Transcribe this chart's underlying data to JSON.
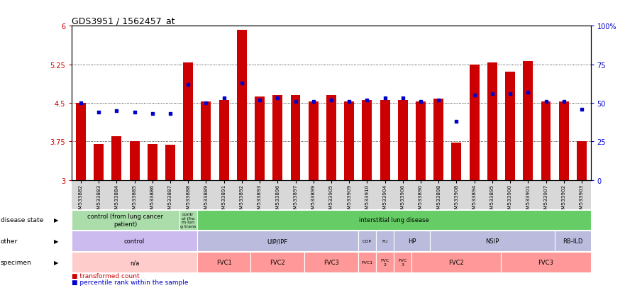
{
  "title": "GDS3951 / 1562457_at",
  "samples": [
    "GSM533882",
    "GSM533883",
    "GSM533884",
    "GSM533885",
    "GSM533886",
    "GSM533887",
    "GSM533888",
    "GSM533889",
    "GSM533891",
    "GSM533892",
    "GSM533893",
    "GSM533896",
    "GSM533897",
    "GSM533899",
    "GSM533905",
    "GSM533909",
    "GSM533910",
    "GSM533904",
    "GSM533906",
    "GSM533890",
    "GSM533898",
    "GSM533908",
    "GSM533894",
    "GSM533895",
    "GSM533900",
    "GSM533901",
    "GSM533907",
    "GSM533902",
    "GSM533903"
  ],
  "bar_values": [
    4.5,
    3.7,
    3.85,
    3.75,
    3.7,
    3.68,
    5.28,
    4.52,
    4.55,
    5.92,
    4.63,
    4.65,
    4.65,
    4.52,
    4.65,
    4.53,
    4.55,
    4.55,
    4.55,
    4.52,
    4.58,
    3.73,
    5.25,
    5.28,
    5.1,
    5.32,
    4.52,
    4.52,
    3.75
  ],
  "percentile_values": [
    50,
    44,
    45,
    44,
    43,
    43,
    62,
    50,
    53,
    63,
    52,
    53,
    51,
    51,
    52,
    51,
    52,
    53,
    53,
    51,
    52,
    38,
    55,
    56,
    56,
    57,
    51,
    51,
    46
  ],
  "ylim_left": [
    3,
    6
  ],
  "ylim_right": [
    0,
    100
  ],
  "yticks_left": [
    3,
    3.75,
    4.5,
    5.25,
    6
  ],
  "yticks_right": [
    0,
    25,
    50,
    75,
    100
  ],
  "bar_color": "#cc0000",
  "point_color": "#0000cc",
  "ds_groups": [
    {
      "label": "control (from lung cancer\npatient)",
      "start": 0,
      "end": 6,
      "color": "#aaddaa"
    },
    {
      "label": "contr\nol (fro\nm lun\ng trans",
      "start": 6,
      "end": 7,
      "color": "#aaddaa"
    },
    {
      "label": "interstitial lung disease",
      "start": 7,
      "end": 29,
      "color": "#66cc66"
    }
  ],
  "other_groups": [
    {
      "label": "control",
      "start": 0,
      "end": 7,
      "color": "#ccbbee"
    },
    {
      "label": "UIP/IPF",
      "start": 7,
      "end": 16,
      "color": "#bbbbdd"
    },
    {
      "label": "COP",
      "start": 16,
      "end": 17,
      "color": "#bbbbdd"
    },
    {
      "label": "FU",
      "start": 17,
      "end": 18,
      "color": "#bbbbdd"
    },
    {
      "label": "HP",
      "start": 18,
      "end": 20,
      "color": "#bbbbdd"
    },
    {
      "label": "NSIP",
      "start": 20,
      "end": 27,
      "color": "#bbbbdd"
    },
    {
      "label": "RB-ILD",
      "start": 27,
      "end": 29,
      "color": "#bbbbdd"
    }
  ],
  "specimen_groups": [
    {
      "label": "n/a",
      "start": 0,
      "end": 7,
      "color": "#ffcccc"
    },
    {
      "label": "FVC1",
      "start": 7,
      "end": 10,
      "color": "#ff9999"
    },
    {
      "label": "FVC2",
      "start": 10,
      "end": 13,
      "color": "#ff9999"
    },
    {
      "label": "FVC3",
      "start": 13,
      "end": 16,
      "color": "#ff9999"
    },
    {
      "label": "FVC1",
      "start": 16,
      "end": 17,
      "color": "#ff9999"
    },
    {
      "label": "FVC\n2",
      "start": 17,
      "end": 18,
      "color": "#ff9999"
    },
    {
      "label": "FVC\n3",
      "start": 18,
      "end": 19,
      "color": "#ff9999"
    },
    {
      "label": "FVC2",
      "start": 19,
      "end": 24,
      "color": "#ff9999"
    },
    {
      "label": "FVC3",
      "start": 24,
      "end": 29,
      "color": "#ff9999"
    }
  ]
}
